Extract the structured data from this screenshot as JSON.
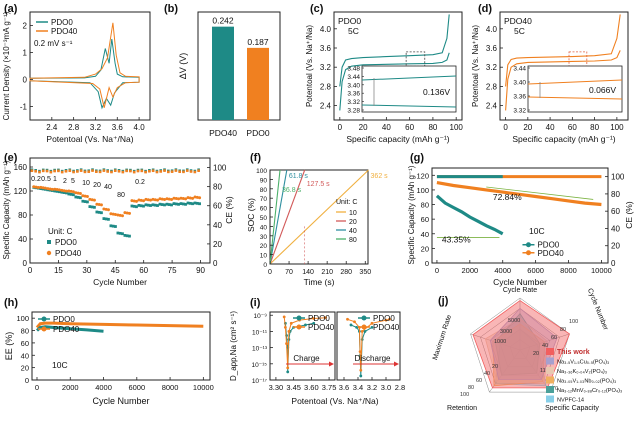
{
  "colors": {
    "pdo0": "#1e8a86",
    "pdo40": "#f08020",
    "axis": "#222222",
    "inset": "#2f9e7a"
  },
  "chart_data": [
    {
      "id": "a",
      "type": "line",
      "panel_label": "(a)",
      "xlabel": "Potentoal (Vs. Na⁺/Na)",
      "ylabel": "Current Density (×10⁻³mA g⁻¹)",
      "annotation": "0.2 mV s⁻¹",
      "xlim": [
        2.0,
        4.2
      ],
      "ylim": [
        -1.5,
        2.5
      ],
      "xticks": [
        "2.4",
        "2.8",
        "3.2",
        "3.6",
        "4.0"
      ],
      "yticks": [
        "-1",
        "0",
        "1",
        "2"
      ],
      "series": [
        {
          "name": "PDO0",
          "x": [
            2.0,
            3.0,
            3.2,
            3.3,
            3.38,
            3.45,
            3.5,
            3.56,
            3.6,
            3.7,
            4.0,
            4.0,
            3.7,
            3.55,
            3.48,
            3.4,
            3.32,
            3.25,
            3.1,
            2.0
          ],
          "y": [
            0.05,
            0.06,
            0.12,
            0.35,
            1.15,
            0.6,
            1.5,
            0.6,
            0.2,
            0.1,
            0.08,
            -0.1,
            -0.12,
            -0.5,
            -0.95,
            -0.7,
            -1.05,
            -0.45,
            -0.12,
            -0.05
          ]
        },
        {
          "name": "PDO40",
          "x": [
            2.0,
            3.0,
            3.2,
            3.32,
            3.42,
            3.52,
            3.58,
            3.65,
            3.75,
            4.0,
            4.0,
            3.75,
            3.6,
            3.52,
            3.45,
            3.36,
            3.28,
            3.15,
            2.0
          ],
          "y": [
            0.05,
            0.08,
            0.2,
            0.4,
            0.8,
            2.1,
            0.9,
            0.25,
            0.12,
            0.1,
            -0.1,
            -0.12,
            -0.3,
            -0.65,
            -0.3,
            -1.05,
            -0.35,
            -0.15,
            -0.05
          ]
        }
      ]
    },
    {
      "id": "b",
      "type": "bar",
      "panel_label": "(b)",
      "ylabel": "ΔV (V)",
      "categories": [
        "PDO40",
        "PDO0"
      ],
      "values": [
        0.242,
        0.187
      ],
      "value_labels": [
        "0.242",
        "0.187"
      ],
      "ylim": [
        0,
        0.28
      ]
    },
    {
      "id": "c",
      "type": "line",
      "panel_label": "(c)",
      "legend": "PDO0",
      "annotation": "5C",
      "xlabel": "Specific capacity (mAh g⁻¹)",
      "ylabel": "Potentoal (Vs. Na⁺/Na)",
      "xlim": [
        -5,
        105
      ],
      "ylim": [
        2.1,
        4.35
      ],
      "xticks": [
        "0",
        "20",
        "40",
        "60",
        "80",
        "100"
      ],
      "yticks": [
        "2.4",
        "2.8",
        "3.2",
        "3.6",
        "4.0"
      ],
      "series": [
        {
          "name": "charge",
          "x": [
            0,
            2,
            5,
            10,
            20,
            40,
            60,
            80,
            88,
            92,
            94
          ],
          "y": [
            2.8,
            3.2,
            3.35,
            3.38,
            3.4,
            3.42,
            3.44,
            3.46,
            3.5,
            3.8,
            4.3
          ]
        },
        {
          "name": "discharge",
          "x": [
            94,
            92,
            88,
            80,
            60,
            40,
            20,
            10,
            5,
            2,
            0
          ],
          "y": [
            3.5,
            3.35,
            3.3,
            3.28,
            3.27,
            3.26,
            3.25,
            3.22,
            3.15,
            2.9,
            2.3
          ]
        }
      ],
      "inset": {
        "ylabel_ticks": [
          "3.48",
          "3.44",
          "3.40",
          "3.36",
          "3.32",
          "3.28"
        ],
        "label": "0.136V"
      }
    },
    {
      "id": "d",
      "type": "line",
      "panel_label": "(d)",
      "legend": "PDO40",
      "annotation": "5C",
      "xlabel": "Specific capacity (mAh g⁻¹)",
      "ylabel": "Potentoal (Vs. Na⁺/Na)",
      "xlim": [
        -5,
        110
      ],
      "ylim": [
        2.1,
        4.35
      ],
      "xticks": [
        "0",
        "20",
        "40",
        "60",
        "80",
        "100"
      ],
      "yticks": [
        "2.4",
        "2.8",
        "3.2",
        "3.6",
        "4.0"
      ],
      "series": [
        {
          "name": "charge",
          "x": [
            0,
            2,
            5,
            10,
            20,
            40,
            60,
            80,
            95,
            100,
            103
          ],
          "y": [
            2.8,
            3.25,
            3.36,
            3.39,
            3.4,
            3.41,
            3.42,
            3.44,
            3.48,
            3.8,
            4.3
          ]
        },
        {
          "name": "discharge",
          "x": [
            103,
            100,
            95,
            80,
            60,
            40,
            20,
            10,
            5,
            2,
            0
          ],
          "y": [
            3.55,
            3.4,
            3.35,
            3.33,
            3.32,
            3.31,
            3.3,
            3.27,
            3.2,
            2.95,
            2.3
          ]
        }
      ],
      "inset": {
        "ylabel_ticks": [
          "3.44",
          "3.40",
          "3.36",
          "3.32"
        ],
        "label": "0.066V"
      }
    },
    {
      "id": "e",
      "type": "scatter",
      "panel_label": "(e)",
      "xlabel": "Cycle Number",
      "ylabel": "Specific Capacity (mAh g⁻¹)",
      "ylabel_right": "CE (%)",
      "xlim": [
        0,
        95
      ],
      "ylim": [
        0,
        175
      ],
      "ylim_right": [
        0,
        110
      ],
      "xticks": [
        "0",
        "15",
        "30",
        "45",
        "60",
        "75",
        "90"
      ],
      "yticks": [
        "0",
        "40",
        "80",
        "120",
        "160"
      ],
      "yticks_right": [
        "0",
        "20",
        "40",
        "60",
        "80",
        "100"
      ],
      "rate_labels": [
        "0.2",
        "0.5",
        "1",
        "2",
        "5",
        "10",
        "20",
        "40",
        "80"
      ],
      "rate_label_return": "0.2",
      "unit": "Unit: C",
      "series": [
        {
          "name": "PDO0",
          "values": [
            126,
            124,
            122,
            120,
            118,
            115,
            110,
            103,
            94,
            85,
            74,
            62,
            50,
            46,
            95,
            96,
            97,
            97,
            98,
            98,
            99,
            99,
            100,
            100
          ]
        },
        {
          "name": "PDO40",
          "values": [
            127,
            126,
            124,
            123,
            121,
            120,
            117,
            112,
            106,
            98,
            90,
            82,
            80,
            84,
            104,
            105,
            106,
            106,
            107,
            107,
            108,
            108,
            109,
            110
          ]
        },
        {
          "name": "CE PDO0",
          "value": 97
        },
        {
          "name": "CE PDO40",
          "value": 96
        }
      ],
      "legend": [
        "PDO0",
        "PDO40"
      ]
    },
    {
      "id": "f",
      "type": "line",
      "panel_label": "(f)",
      "xlabel": "Time (s)",
      "ylabel": "SOC (%)",
      "xlim": [
        0,
        360
      ],
      "ylim": [
        0,
        100
      ],
      "xticks": [
        "0",
        "70",
        "140",
        "210",
        "280",
        "350"
      ],
      "yticks": [
        "0",
        "10",
        "20",
        "30",
        "40",
        "50",
        "60",
        "70",
        "80",
        "90",
        "100"
      ],
      "legend_title": "Unit: C",
      "series": [
        {
          "name": "10",
          "t100": 362,
          "color": "#f0b040"
        },
        {
          "name": "20",
          "t100": 127.5,
          "color": "#d25a5a"
        },
        {
          "name": "40",
          "t100": 61.8,
          "color": "#2f8fa0"
        },
        {
          "name": "80",
          "t100": 36.8,
          "color": "#4cb06a"
        }
      ],
      "time_labels": [
        "36.8 s",
        "61.8 s",
        "127.5 s",
        "362 s"
      ]
    },
    {
      "id": "g",
      "type": "scatter",
      "panel_label": "(g)",
      "xlabel": "Cycle Number",
      "ylabel": "Specific Capacity (mAh g⁻¹)",
      "ylabel_right": "CE (%)",
      "xlim": [
        -300,
        10400
      ],
      "ylim": [
        0,
        130
      ],
      "ylim_right": [
        0,
        110
      ],
      "xticks": [
        "0",
        "2000",
        "4000",
        "6000",
        "8000",
        "10000"
      ],
      "yticks": [
        "0",
        "20",
        "40",
        "60",
        "80",
        "100",
        "120"
      ],
      "yticks_right": [
        "0",
        "20",
        "40",
        "60",
        "80",
        "100"
      ],
      "annotation": "10C",
      "retention_labels": [
        "72.84%",
        "43.35%"
      ],
      "series": [
        {
          "name": "PDO0",
          "x": [
            0,
            500,
            1000,
            1500,
            2000,
            2500,
            3000,
            3500,
            4000
          ],
          "y": [
            92,
            82,
            76,
            70,
            63,
            57,
            51,
            46,
            40
          ]
        },
        {
          "name": "PDO40",
          "x": [
            0,
            1000,
            2000,
            3000,
            4000,
            5000,
            6000,
            7000,
            8000,
            9000,
            10000
          ],
          "y": [
            110,
            106,
            103,
            100,
            97,
            94,
            91,
            88,
            85,
            82,
            80
          ]
        },
        {
          "name": "CE PDO0",
          "value": 100
        },
        {
          "name": "CE PDO40",
          "value": 100
        }
      ],
      "legend": [
        "PDO0",
        "PDO40"
      ]
    },
    {
      "id": "h",
      "type": "line",
      "panel_label": "(h)",
      "xlabel": "Cycle Number",
      "ylabel": "EE (%)",
      "xlim": [
        -300,
        10400
      ],
      "ylim": [
        0,
        110
      ],
      "xticks": [
        "0",
        "2000",
        "4000",
        "6000",
        "8000",
        "10000"
      ],
      "yticks": [
        "0",
        "20",
        "40",
        "60",
        "80",
        "100"
      ],
      "annotation": "10C",
      "series": [
        {
          "name": "PDO0",
          "x": [
            0,
            200,
            500,
            1000,
            2000,
            3000,
            4000
          ],
          "y": [
            80,
            85,
            86,
            85,
            83,
            81,
            79
          ]
        },
        {
          "name": "PDO40",
          "x": [
            0,
            200,
            500,
            1000,
            2000,
            4000,
            6000,
            8000,
            10000
          ],
          "y": [
            85,
            91,
            92,
            92,
            91,
            90,
            89,
            88,
            87
          ]
        }
      ],
      "legend": [
        "PDO0",
        "PDO40"
      ]
    },
    {
      "id": "i",
      "type": "scatter",
      "panel_label": "(i)",
      "xlabel": "Potentoal (Vs. Na⁺/Na)",
      "ylabel": "D_app,Na (cm² s⁻¹)",
      "yticks": [
        "10⁻⁹",
        "10⁻¹¹",
        "10⁻¹³",
        "10⁻¹⁵",
        "10⁻¹⁷"
      ],
      "xticks_charge": [
        "3.30",
        "3.45",
        "3.60",
        "3.75"
      ],
      "xticks_discharge": [
        "3.6",
        "3.4",
        "3.2",
        "3.0",
        "2.8"
      ],
      "arrow_labels": [
        "Charge",
        "Discharge"
      ],
      "series": [
        {
          "name": "PDO0",
          "charge": {
            "x": [
              3.38,
              3.39,
              3.4,
              3.4,
              3.41,
              3.42,
              3.45,
              3.55,
              3.62
            ],
            "log_y": [
              -10,
              -11.5,
              -13,
              -16,
              -12,
              -11,
              -10.5,
              -10.2,
              -10
            ]
          },
          "discharge": {
            "x": [
              3.5,
              3.42,
              3.38,
              3.37,
              3.36,
              3.34,
              3.3,
              3.2
            ],
            "log_y": [
              -10.2,
              -10.5,
              -11,
              -14,
              -16.5,
              -12,
              -11,
              -10.5
            ]
          }
        },
        {
          "name": "PDO40",
          "charge": {
            "x": [
              3.37,
              3.38,
              3.39,
              3.4,
              3.41,
              3.43,
              3.5,
              3.62,
              3.72
            ],
            "log_y": [
              -9.2,
              -10.5,
              -12.5,
              -15.5,
              -11,
              -10,
              -9.6,
              -9.4,
              -9.3
            ]
          },
          "discharge": {
            "x": [
              3.55,
              3.45,
              3.38,
              3.37,
              3.36,
              3.34,
              3.2,
              3.0,
              2.95
            ],
            "log_y": [
              -9.5,
              -9.8,
              -10.5,
              -13.5,
              -15.8,
              -11,
              -10,
              -9.6,
              -9.5
            ]
          }
        }
      ],
      "legend": [
        "PDO0",
        "PDO40"
      ]
    },
    {
      "id": "j",
      "type": "radar",
      "panel_label": "(j)",
      "axes": [
        "Cycle Rate",
        "Cycle Number",
        "Specific Capacity",
        "Retention",
        "Maximum Rate"
      ],
      "scale_labels": [
        "5000",
        "3000",
        "1000",
        "20",
        "40",
        "60",
        "80",
        "100",
        "110",
        "90",
        "70",
        "20",
        "40",
        "60",
        "80",
        "100"
      ],
      "series": [
        {
          "name": "This work",
          "color": "#f25e5e",
          "values": [
            0.95,
            1.0,
            0.9,
            0.9,
            0.95
          ]
        },
        {
          "name": "Na₃.₅V₁.₅Cu₀.₅(PO₄)₃",
          "color": "#a6a0cf",
          "values": [
            0.8,
            0.75,
            0.7,
            0.7,
            0.6
          ]
        },
        {
          "name": "Na₃.₃₆K₀.₀₄V₂(PO₄)₃",
          "color": "#e8c8b0",
          "values": [
            0.6,
            0.55,
            0.8,
            0.75,
            0.7
          ]
        },
        {
          "name": "Na₃.₀₅V₁.₀₃Nb₀.₀₂(PO₄)₃",
          "color": "#f0b060",
          "values": [
            0.5,
            0.5,
            0.75,
            0.85,
            0.55
          ]
        },
        {
          "name": "Na₃.₁₂MnV₀.₈₈Cr₀.₁₂(PO₄)₃",
          "color": "#4aa09a",
          "values": [
            0.7,
            0.4,
            0.55,
            0.6,
            0.5
          ]
        },
        {
          "name": "NVPFC-14",
          "color": "#88cfe8",
          "values": [
            0.4,
            0.35,
            0.85,
            0.8,
            0.4
          ]
        }
      ]
    }
  ]
}
